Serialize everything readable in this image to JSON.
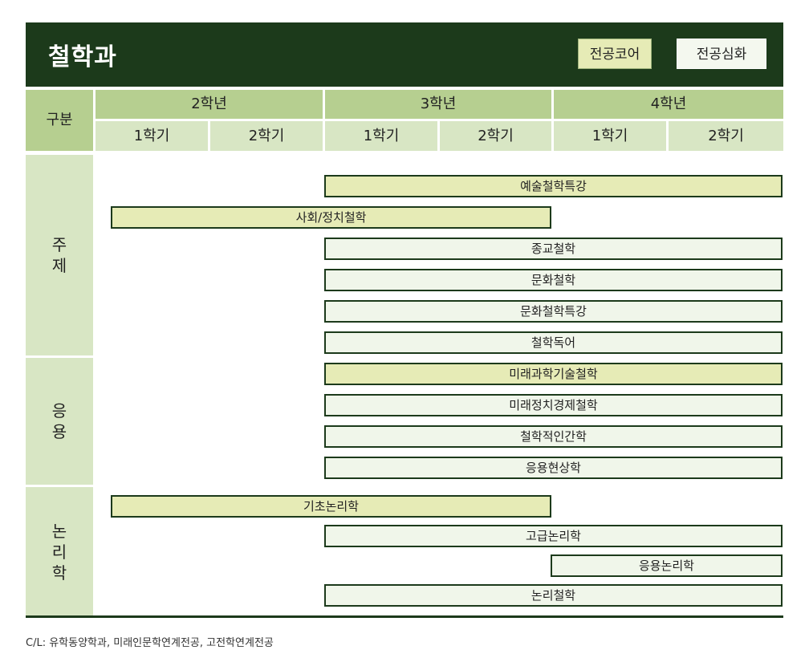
{
  "header": {
    "title": "철학과",
    "legend": {
      "core_label": "전공코어",
      "advanced_label": "전공심화"
    }
  },
  "table_header": {
    "gubun": "구분",
    "years": [
      {
        "label": "2학년"
      },
      {
        "label": "3학년"
      },
      {
        "label": "4학년"
      }
    ],
    "semesters": [
      "1학기",
      "2학기",
      "1학기",
      "2학기",
      "1학기",
      "2학기"
    ]
  },
  "categories": [
    {
      "label": "주제"
    },
    {
      "label": "응용"
    },
    {
      "label": "논리학"
    }
  ],
  "courses": [
    {
      "name": "예술철학특강",
      "type": "core",
      "start": "3학년 1학기",
      "end": "4학년 2학기"
    },
    {
      "name": "사회/정치철학",
      "type": "core",
      "start": "2학년 1학기",
      "end": "3학년 2학기"
    },
    {
      "name": "종교철학",
      "type": "advanced",
      "start": "3학년 1학기",
      "end": "4학년 2학기"
    },
    {
      "name": "문화철학",
      "type": "advanced",
      "start": "3학년 1학기",
      "end": "4학년 2학기"
    },
    {
      "name": "문화철학특강",
      "type": "advanced",
      "start": "3학년 1학기",
      "end": "4학년 2학기"
    },
    {
      "name": "철학독어",
      "type": "advanced",
      "start": "3학년 1학기",
      "end": "4학년 2학기"
    },
    {
      "name": "미래과학기술철학",
      "type": "core",
      "start": "3학년 1학기",
      "end": "4학년 2학기"
    },
    {
      "name": "미래정치경제철학",
      "type": "advanced",
      "start": "3학년 1학기",
      "end": "4학년 2학기"
    },
    {
      "name": "철학적인간학",
      "type": "advanced",
      "start": "3학년 1학기",
      "end": "4학년 2학기"
    },
    {
      "name": "응용현상학",
      "type": "advanced",
      "start": "3학년 1학기",
      "end": "4학년 2학기"
    },
    {
      "name": "기초논리학",
      "type": "core",
      "start": "2학년 1학기",
      "end": "3학년 2학기"
    },
    {
      "name": "고급논리학",
      "type": "advanced",
      "start": "3학년 1학기",
      "end": "4학년 2학기"
    },
    {
      "name": "응용논리학",
      "type": "advanced",
      "start": "4학년 1학기",
      "end": "4학년 2학기"
    },
    {
      "name": "논리철학",
      "type": "advanced",
      "start": "3학년 1학기",
      "end": "4학년 2학기"
    }
  ],
  "footnote": "C/L: 유학동양학과, 미래인문학연계전공, 고전학연계전공",
  "colors": {
    "header_bg": "#1c3a1b",
    "header_cell": "#b6cf90",
    "sub_cell": "#d8e6c4",
    "core_fill": "#e6ebb6",
    "advanced_fill": "#f0f6ea"
  }
}
